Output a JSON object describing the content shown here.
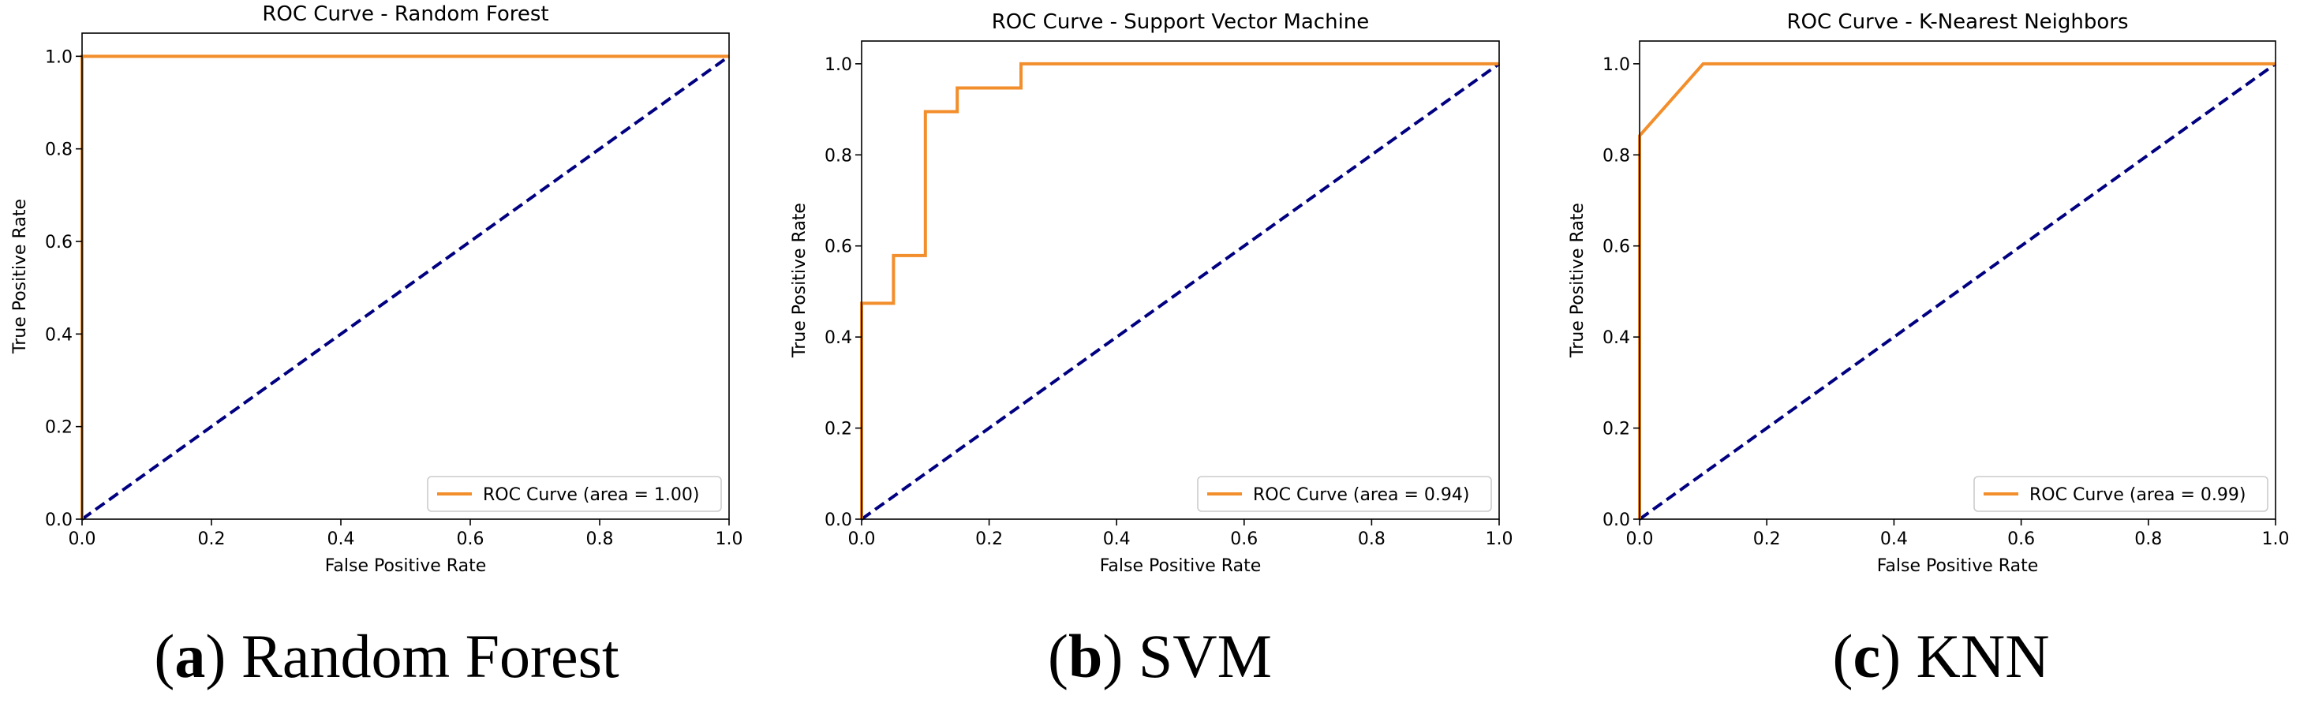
{
  "colors": {
    "roc": "#f28e2b",
    "chance": "#000080",
    "frame": "#000000"
  },
  "chart_data": [
    {
      "type": "line",
      "title": "ROC Curve - Random Forest",
      "xlabel": "False Positive Rate",
      "ylabel": "True Positive Rate",
      "xlim": [
        0.0,
        1.0
      ],
      "ylim": [
        0.0,
        1.05
      ],
      "xticks": [
        "0.0",
        "0.2",
        "0.4",
        "0.6",
        "0.8",
        "1.0"
      ],
      "yticks": [
        "0.0",
        "0.2",
        "0.4",
        "0.6",
        "0.8",
        "1.0"
      ],
      "legend": "ROC Curve (area = 1.00)",
      "legend_loc": "lower-right",
      "series": [
        {
          "name": "ROC Curve (area = 1.00)",
          "style": "solid",
          "x": [
            0.0,
            0.0,
            1.0
          ],
          "y": [
            0.0,
            1.0,
            1.0
          ]
        },
        {
          "name": "chance",
          "style": "dashed",
          "x": [
            0.0,
            1.0
          ],
          "y": [
            0.0,
            1.0
          ]
        }
      ],
      "caption_letter": "a",
      "caption_text": "Random Forest"
    },
    {
      "type": "line",
      "title": "ROC Curve - Support Vector Machine",
      "xlabel": "False Positive Rate",
      "ylabel": "True Positive Rate",
      "xlim": [
        0.0,
        1.0
      ],
      "ylim": [
        0.0,
        1.05
      ],
      "xticks": [
        "0.0",
        "0.2",
        "0.4",
        "0.6",
        "0.8",
        "1.0"
      ],
      "yticks": [
        "0.0",
        "0.2",
        "0.4",
        "0.6",
        "0.8",
        "1.0"
      ],
      "legend": "ROC Curve (area = 0.94)",
      "legend_loc": "lower-right",
      "series": [
        {
          "name": "ROC Curve (area = 0.94)",
          "style": "solid",
          "x": [
            0.0,
            0.0,
            0.05,
            0.05,
            0.1,
            0.1,
            0.15,
            0.15,
            0.25,
            0.25,
            1.0
          ],
          "y": [
            0.0,
            0.474,
            0.474,
            0.579,
            0.579,
            0.895,
            0.895,
            0.947,
            0.947,
            1.0,
            1.0
          ]
        },
        {
          "name": "chance",
          "style": "dashed",
          "x": [
            0.0,
            1.0
          ],
          "y": [
            0.0,
            1.0
          ]
        }
      ],
      "caption_letter": "b",
      "caption_text": "SVM"
    },
    {
      "type": "line",
      "title": "ROC Curve - K-Nearest Neighbors",
      "xlabel": "False Positive Rate",
      "ylabel": "True Positive Rate",
      "xlim": [
        0.0,
        1.0
      ],
      "ylim": [
        0.0,
        1.05
      ],
      "xticks": [
        "0.0",
        "0.2",
        "0.4",
        "0.6",
        "0.8",
        "1.0"
      ],
      "yticks": [
        "0.0",
        "0.2",
        "0.4",
        "0.6",
        "0.8",
        "1.0"
      ],
      "legend": "ROC Curve (area = 0.99)",
      "legend_loc": "lower-right",
      "series": [
        {
          "name": "ROC Curve (area = 0.99)",
          "style": "solid",
          "x": [
            0.0,
            0.0,
            0.1,
            1.0
          ],
          "y": [
            0.0,
            0.842,
            1.0,
            1.0
          ]
        },
        {
          "name": "chance",
          "style": "dashed",
          "x": [
            0.0,
            1.0
          ],
          "y": [
            0.0,
            1.0
          ]
        }
      ],
      "caption_letter": "c",
      "caption_text": "KNN"
    }
  ]
}
